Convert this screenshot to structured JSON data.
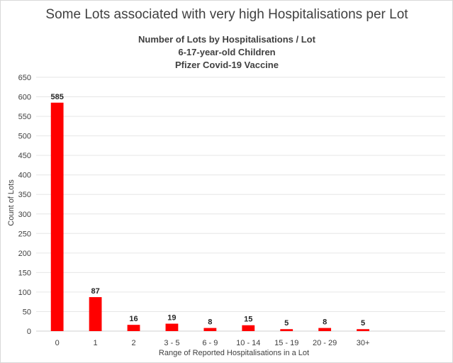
{
  "chart_data": {
    "type": "bar",
    "title": "Some Lots associated with very high Hospitalisations per Lot",
    "subtitle": [
      "Number of Lots by Hospitalisations / Lot",
      "6-17-year-old Children",
      "Pfizer Covid-19 Vaccine"
    ],
    "xlabel": "Range of Reported Hospitalisations in a Lot",
    "ylabel": "Count of Lots",
    "categories": [
      "0",
      "1",
      "2",
      "3 - 5",
      "6 - 9",
      "10 - 14",
      "15 - 19",
      "20 - 29",
      "30+"
    ],
    "values": [
      585,
      87,
      16,
      19,
      8,
      15,
      5,
      8,
      5
    ],
    "ylim": [
      0,
      650
    ],
    "yticks": [
      "0",
      "50",
      "100",
      "150",
      "200",
      "250",
      "300",
      "350",
      "400",
      "450",
      "500",
      "550",
      "600",
      "650"
    ],
    "grid": true,
    "legend": "none",
    "bar_color": "#ff0000"
  }
}
